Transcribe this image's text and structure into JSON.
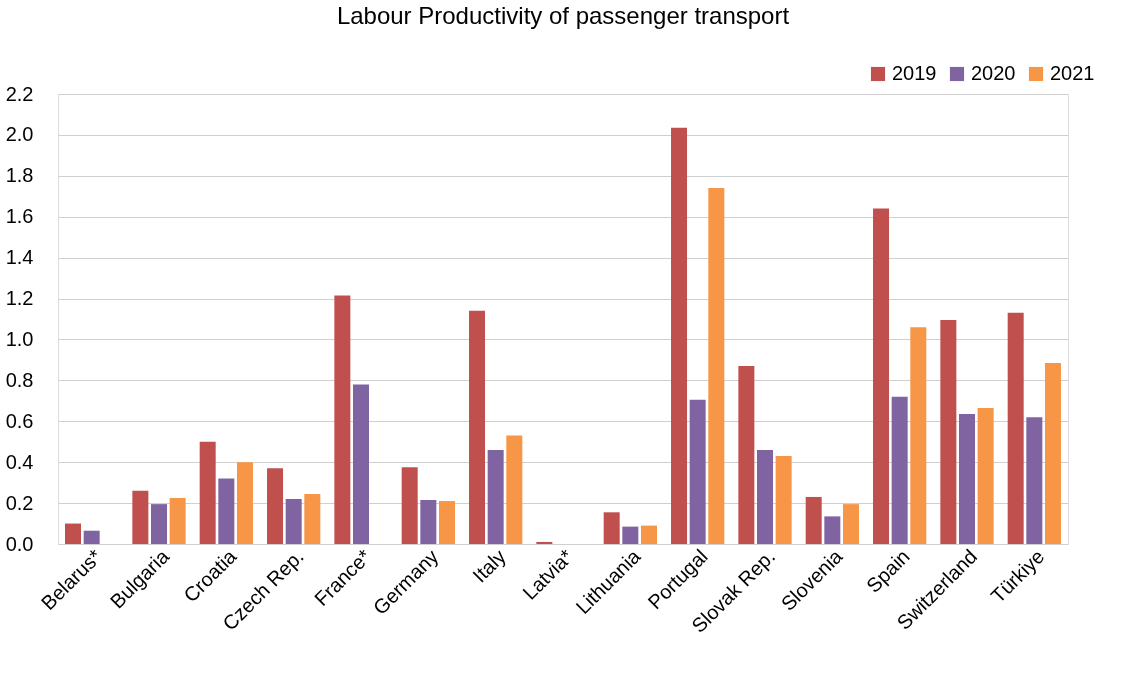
{
  "chart_data": {
    "type": "bar",
    "title": "Labour Productivity of passenger transport",
    "categories": [
      "Belarus*",
      "Bulgaria",
      "Croatia",
      "Czech Rep.",
      "France*",
      "Germany",
      "Italy",
      "Latvia*",
      "Lithuania",
      "Portugal",
      "Slovak Rep.",
      "Slovenia",
      "Spain",
      "Switzerland",
      "Türkiye"
    ],
    "series": [
      {
        "name": "2019",
        "color": "#c0504d",
        "values": [
          0.1,
          0.26,
          0.5,
          0.37,
          1.215,
          0.375,
          1.14,
          0.01,
          0.155,
          2.035,
          0.87,
          0.23,
          1.64,
          1.095,
          1.13
        ]
      },
      {
        "name": "2020",
        "color": "#8064a2",
        "values": [
          0.065,
          0.195,
          0.32,
          0.22,
          0.78,
          0.215,
          0.46,
          null,
          0.085,
          0.705,
          0.46,
          0.135,
          0.72,
          0.635,
          0.62
        ]
      },
      {
        "name": "2021",
        "color": "#f79646",
        "values": [
          null,
          0.225,
          0.4,
          0.245,
          null,
          0.21,
          0.53,
          null,
          0.09,
          1.74,
          0.43,
          0.195,
          1.06,
          0.665,
          0.885
        ]
      }
    ],
    "ylim": [
      0,
      2.2
    ],
    "yticks": [
      {
        "value": 0,
        "label": "0.0"
      },
      {
        "value": 0.2,
        "label": "0.2"
      },
      {
        "value": 0.4,
        "label": "0.4"
      },
      {
        "value": 0.6,
        "label": "0.6"
      },
      {
        "value": 0.8,
        "label": "0.8"
      },
      {
        "value": 1.0,
        "label": "1.0"
      },
      {
        "value": 1.2,
        "label": "1.2"
      },
      {
        "value": 1.4,
        "label": "1.4"
      },
      {
        "value": 1.6,
        "label": "1.6"
      },
      {
        "value": 1.8,
        "label": "1.8"
      },
      {
        "value": 2.0,
        "label": "2.0"
      },
      {
        "value": 2.2,
        "label": "2.2"
      }
    ],
    "grid": "y",
    "legend": "top right"
  }
}
